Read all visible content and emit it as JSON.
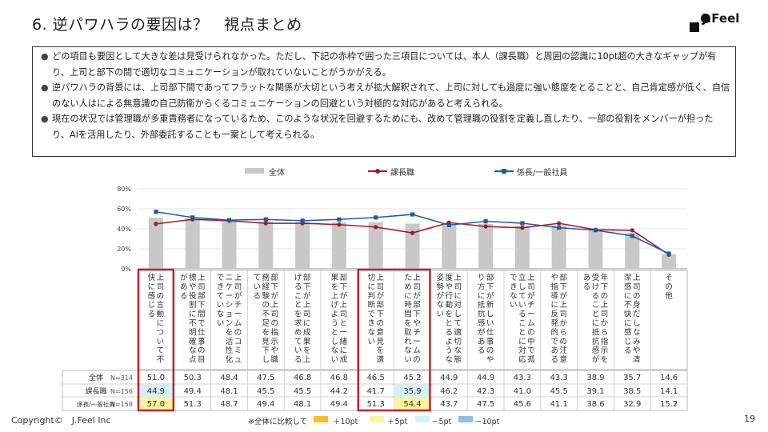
{
  "page": {
    "title": "6. 逆パワハラの要因は？　視点まとめ",
    "logo_text": "J.Feel",
    "copyright": "Copyright©　J.Feel Inc",
    "page_number": "19"
  },
  "summary": {
    "bullets": [
      "どの項目も要因として大きな差は見受けられなかった。ただし、下記の赤枠で囲った三項目については、本人（課長職）と周囲の認識に10pt超の大きなギャップが有り、上司と部下の間で適切なコミュニケーションが取れていないことがうかがえる。",
      "逆パワハラの背景には、上司部下間であってフラットな関係が大切という考えが拡大解釈されて、上司に対しても過度に強い態度をとることと、自己肯定感が低く、自信のない人はによる無意識の自己防衛からくるコミュニケーションの回避という対極的な対応があると考えられる。",
      "現在の状況では管理職が多重責務者になっているため、このような状況を回避するためにも、改めて管理職の役割を定義し直したり、一部の役割をメンバーが担ったり、AIを活用したり、外部委託することも一案として考えられる。"
    ]
  },
  "chart_data": {
    "type": "bar",
    "ylim": [
      0,
      80
    ],
    "yticks": [
      "0%",
      "20%",
      "40%",
      "60%",
      "80%"
    ],
    "categories": [
      "上司の言動について不快に感じる",
      "上司部下間で仕事の目標や役割に不明確な点がある",
      "上司がチームのコミュニケーションを活性化できていない",
      "部下が上司の指示や職務経験の不足を見下している",
      "部下が上司に成果を上げることを求めている",
      "部下が上司と一緒に成果を上げようとしない",
      "上司が部下の意見を適切に判断できない",
      "上司が部下やチームのために時間を取れない",
      "上司に対して適切な態度や行動をとるような姿勢がない",
      "部下が新しい仕事のやり方に抵抗感がある",
      "上司がチームの中で孤立していることに対応できない",
      "部下が上司からの注意や指導に反発的である",
      "年下の上司から指示を受けることに抵抗感がある",
      "上司の身だしなみや清潔感に不快に感じる",
      "その他"
    ],
    "highlighted_categories": [
      0,
      6,
      7
    ],
    "series": [
      {
        "name": "全体",
        "n": "N=314",
        "values": [
          51.0,
          50.3,
          48.4,
          47.5,
          46.8,
          46.8,
          46.5,
          45.2,
          44.9,
          44.9,
          43.3,
          43.3,
          38.9,
          35.7,
          14.6
        ]
      },
      {
        "name": "課長職",
        "n": "N=156",
        "values": [
          44.9,
          49.4,
          48.1,
          45.5,
          45.5,
          44.2,
          41.7,
          35.9,
          46.2,
          42.3,
          41.0,
          45.5,
          39.1,
          38.5,
          14.1
        ]
      },
      {
        "name": "係長/一般社員",
        "n": "N=158",
        "values": [
          57.0,
          51.3,
          48.7,
          49.4,
          48.1,
          49.4,
          51.3,
          54.4,
          43.7,
          47.5,
          45.6,
          41.1,
          38.6,
          32.9,
          15.2
        ]
      }
    ],
    "table_labels": [
      "全体",
      "課長職",
      "係長/一般社員"
    ],
    "highlight_cells": [
      {
        "row": 1,
        "col": 0,
        "level": "-5pt"
      },
      {
        "row": 1,
        "col": 7,
        "level": "-5pt"
      },
      {
        "row": 2,
        "col": 0,
        "level": "+5pt"
      },
      {
        "row": 2,
        "col": 7,
        "level": "+5pt"
      }
    ],
    "legend": {
      "bar": "全体",
      "line1": "課長職",
      "line2": "係長/一般社員"
    },
    "note": "※全体に比較して",
    "scale_labels": [
      "＋10pt",
      "＋5pt",
      "－5pt",
      "－10pt"
    ],
    "colors": {
      "bar": "#c8c8c8",
      "line1": "#a0182a",
      "line2": "#1f5e9e",
      "highlight_box": "#c0202a",
      "plus10": "#f5c02a",
      "plus5": "#fbf4a0",
      "minus5": "#d6f0f7",
      "minus10": "#8fbfe8"
    }
  }
}
